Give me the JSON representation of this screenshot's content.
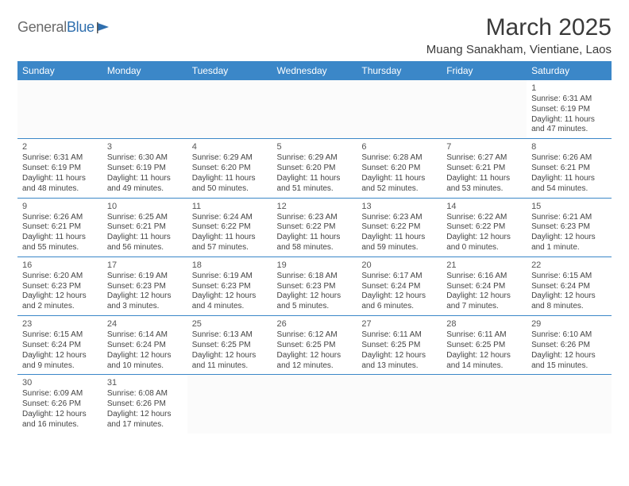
{
  "brand": {
    "grey": "General",
    "blue": "Blue"
  },
  "title": "March 2025",
  "location": "Muang Sanakham, Vientiane, Laos",
  "colors": {
    "header_bg": "#3b87c8",
    "header_text": "#ffffff",
    "cell_border": "#3b87c8",
    "body_text": "#444444",
    "title_text": "#3a3a3a"
  },
  "days_of_week": [
    "Sunday",
    "Monday",
    "Tuesday",
    "Wednesday",
    "Thursday",
    "Friday",
    "Saturday"
  ],
  "weeks": [
    [
      null,
      null,
      null,
      null,
      null,
      null,
      {
        "n": "1",
        "sr": "Sunrise: 6:31 AM",
        "ss": "Sunset: 6:19 PM",
        "dl": "Daylight: 11 hours and 47 minutes."
      }
    ],
    [
      {
        "n": "2",
        "sr": "Sunrise: 6:31 AM",
        "ss": "Sunset: 6:19 PM",
        "dl": "Daylight: 11 hours and 48 minutes."
      },
      {
        "n": "3",
        "sr": "Sunrise: 6:30 AM",
        "ss": "Sunset: 6:19 PM",
        "dl": "Daylight: 11 hours and 49 minutes."
      },
      {
        "n": "4",
        "sr": "Sunrise: 6:29 AM",
        "ss": "Sunset: 6:20 PM",
        "dl": "Daylight: 11 hours and 50 minutes."
      },
      {
        "n": "5",
        "sr": "Sunrise: 6:29 AM",
        "ss": "Sunset: 6:20 PM",
        "dl": "Daylight: 11 hours and 51 minutes."
      },
      {
        "n": "6",
        "sr": "Sunrise: 6:28 AM",
        "ss": "Sunset: 6:20 PM",
        "dl": "Daylight: 11 hours and 52 minutes."
      },
      {
        "n": "7",
        "sr": "Sunrise: 6:27 AM",
        "ss": "Sunset: 6:21 PM",
        "dl": "Daylight: 11 hours and 53 minutes."
      },
      {
        "n": "8",
        "sr": "Sunrise: 6:26 AM",
        "ss": "Sunset: 6:21 PM",
        "dl": "Daylight: 11 hours and 54 minutes."
      }
    ],
    [
      {
        "n": "9",
        "sr": "Sunrise: 6:26 AM",
        "ss": "Sunset: 6:21 PM",
        "dl": "Daylight: 11 hours and 55 minutes."
      },
      {
        "n": "10",
        "sr": "Sunrise: 6:25 AM",
        "ss": "Sunset: 6:21 PM",
        "dl": "Daylight: 11 hours and 56 minutes."
      },
      {
        "n": "11",
        "sr": "Sunrise: 6:24 AM",
        "ss": "Sunset: 6:22 PM",
        "dl": "Daylight: 11 hours and 57 minutes."
      },
      {
        "n": "12",
        "sr": "Sunrise: 6:23 AM",
        "ss": "Sunset: 6:22 PM",
        "dl": "Daylight: 11 hours and 58 minutes."
      },
      {
        "n": "13",
        "sr": "Sunrise: 6:23 AM",
        "ss": "Sunset: 6:22 PM",
        "dl": "Daylight: 11 hours and 59 minutes."
      },
      {
        "n": "14",
        "sr": "Sunrise: 6:22 AM",
        "ss": "Sunset: 6:22 PM",
        "dl": "Daylight: 12 hours and 0 minutes."
      },
      {
        "n": "15",
        "sr": "Sunrise: 6:21 AM",
        "ss": "Sunset: 6:23 PM",
        "dl": "Daylight: 12 hours and 1 minute."
      }
    ],
    [
      {
        "n": "16",
        "sr": "Sunrise: 6:20 AM",
        "ss": "Sunset: 6:23 PM",
        "dl": "Daylight: 12 hours and 2 minutes."
      },
      {
        "n": "17",
        "sr": "Sunrise: 6:19 AM",
        "ss": "Sunset: 6:23 PM",
        "dl": "Daylight: 12 hours and 3 minutes."
      },
      {
        "n": "18",
        "sr": "Sunrise: 6:19 AM",
        "ss": "Sunset: 6:23 PM",
        "dl": "Daylight: 12 hours and 4 minutes."
      },
      {
        "n": "19",
        "sr": "Sunrise: 6:18 AM",
        "ss": "Sunset: 6:23 PM",
        "dl": "Daylight: 12 hours and 5 minutes."
      },
      {
        "n": "20",
        "sr": "Sunrise: 6:17 AM",
        "ss": "Sunset: 6:24 PM",
        "dl": "Daylight: 12 hours and 6 minutes."
      },
      {
        "n": "21",
        "sr": "Sunrise: 6:16 AM",
        "ss": "Sunset: 6:24 PM",
        "dl": "Daylight: 12 hours and 7 minutes."
      },
      {
        "n": "22",
        "sr": "Sunrise: 6:15 AM",
        "ss": "Sunset: 6:24 PM",
        "dl": "Daylight: 12 hours and 8 minutes."
      }
    ],
    [
      {
        "n": "23",
        "sr": "Sunrise: 6:15 AM",
        "ss": "Sunset: 6:24 PM",
        "dl": "Daylight: 12 hours and 9 minutes."
      },
      {
        "n": "24",
        "sr": "Sunrise: 6:14 AM",
        "ss": "Sunset: 6:24 PM",
        "dl": "Daylight: 12 hours and 10 minutes."
      },
      {
        "n": "25",
        "sr": "Sunrise: 6:13 AM",
        "ss": "Sunset: 6:25 PM",
        "dl": "Daylight: 12 hours and 11 minutes."
      },
      {
        "n": "26",
        "sr": "Sunrise: 6:12 AM",
        "ss": "Sunset: 6:25 PM",
        "dl": "Daylight: 12 hours and 12 minutes."
      },
      {
        "n": "27",
        "sr": "Sunrise: 6:11 AM",
        "ss": "Sunset: 6:25 PM",
        "dl": "Daylight: 12 hours and 13 minutes."
      },
      {
        "n": "28",
        "sr": "Sunrise: 6:11 AM",
        "ss": "Sunset: 6:25 PM",
        "dl": "Daylight: 12 hours and 14 minutes."
      },
      {
        "n": "29",
        "sr": "Sunrise: 6:10 AM",
        "ss": "Sunset: 6:26 PM",
        "dl": "Daylight: 12 hours and 15 minutes."
      }
    ],
    [
      {
        "n": "30",
        "sr": "Sunrise: 6:09 AM",
        "ss": "Sunset: 6:26 PM",
        "dl": "Daylight: 12 hours and 16 minutes."
      },
      {
        "n": "31",
        "sr": "Sunrise: 6:08 AM",
        "ss": "Sunset: 6:26 PM",
        "dl": "Daylight: 12 hours and 17 minutes."
      },
      null,
      null,
      null,
      null,
      null
    ]
  ]
}
